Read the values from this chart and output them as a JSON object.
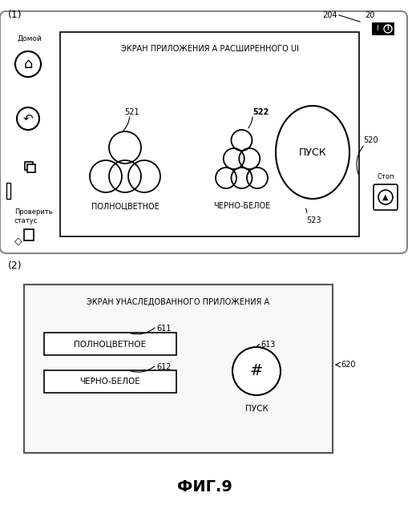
{
  "bg_color": "#ffffff",
  "label_1": "(1)",
  "label_2": "(2)",
  "fig_label": "ФИГ.9",
  "device_label_204": "204",
  "device_label_20": "20",
  "screen1_title": "ЭКРАН ПРИЛОЖЕНИЯ А РАСШИРЕННОГО UI",
  "screen1_label": "520",
  "label_521": "521",
  "label_522": "522",
  "label_523": "523",
  "text_polno": "ПОЛНОЦВЕТНОЕ",
  "text_cherno": "ЧЕРНО-БЕЛОЕ",
  "text_pusk": "ПУСК",
  "text_stop": "Стоп",
  "text_home": "Домой",
  "text_check": "Проверить\nстатус",
  "screen2_title": "ЭКРАН УНАСЛЕДОВАННОГО ПРИЛОЖЕНИЯ А",
  "screen2_label": "620",
  "label_611": "611",
  "label_612": "612",
  "label_613": "613",
  "text_polno2": "ПОЛНОЦВЕТНОЕ",
  "text_cherno2": "ЧЕРНО-БЕЛОЕ",
  "text_pusk2": "ПУСК",
  "hash": "#"
}
